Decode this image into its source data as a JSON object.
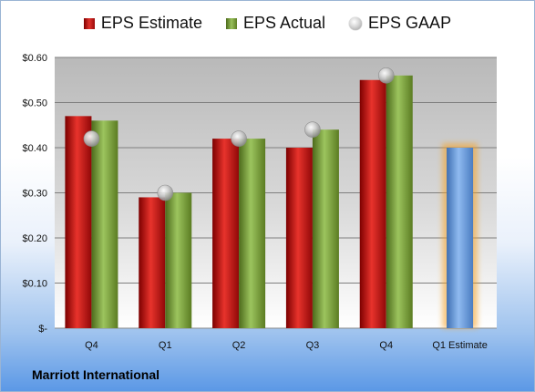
{
  "chart_data": {
    "type": "bar",
    "categories": [
      "Q4",
      "Q1",
      "Q2",
      "Q3",
      "Q4",
      "Q1 Estimate"
    ],
    "series": [
      {
        "name": "EPS Estimate",
        "type": "bar",
        "color": "#c8161b",
        "values": [
          0.47,
          0.29,
          0.42,
          0.4,
          0.55,
          null
        ]
      },
      {
        "name": "EPS Actual",
        "type": "bar",
        "color": "#7fa640",
        "values": [
          0.46,
          0.3,
          0.42,
          0.44,
          0.56,
          null
        ]
      },
      {
        "name": "EPS GAAP",
        "type": "scatter",
        "color": "#b0b0b0",
        "values": [
          0.42,
          0.3,
          0.42,
          0.44,
          0.56,
          null
        ]
      },
      {
        "name": "",
        "type": "bar",
        "color": "#6f9ed8",
        "values": [
          null,
          null,
          null,
          null,
          null,
          0.4
        ],
        "highlight": "#f5a020"
      }
    ],
    "y_ticks": [
      "$-",
      "$0.10",
      "$0.20",
      "$0.30",
      "$0.40",
      "$0.50",
      "$0.60"
    ],
    "ylim": [
      0,
      0.6
    ],
    "grid": true,
    "legend": "top"
  },
  "company": "Marriott International"
}
